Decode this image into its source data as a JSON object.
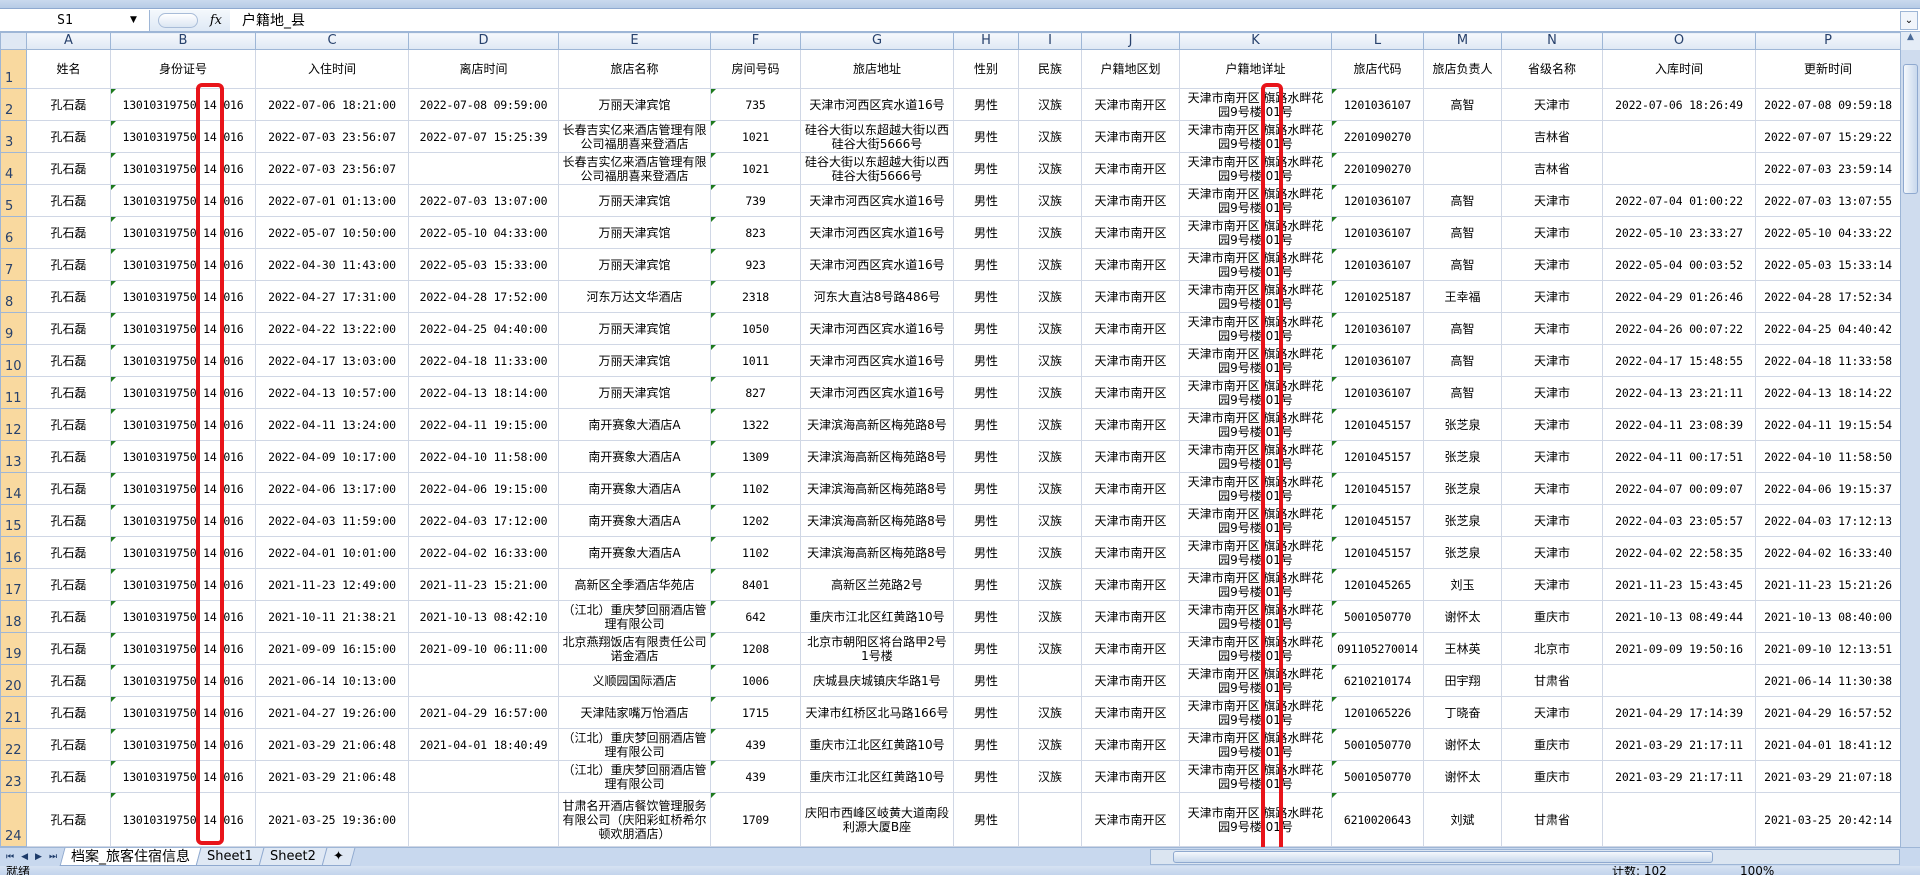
{
  "formula_bar": {
    "name_box": "S1",
    "fx_label": "fx",
    "formula": "户籍地_县"
  },
  "columns": [
    "A",
    "B",
    "C",
    "D",
    "E",
    "F",
    "G",
    "H",
    "I",
    "J",
    "K",
    "L",
    "M",
    "N",
    "O",
    "P"
  ],
  "headers": [
    "姓名",
    "身份证号",
    "入住时间",
    "离店时间",
    "旅店名称",
    "房间号码",
    "旅店地址",
    "性别",
    "民族",
    "户籍地区划",
    "户籍地详址",
    "旅店代码",
    "旅店负责人",
    "省级名称",
    "入库时间",
    "更新时间"
  ],
  "rows": [
    [
      "孔石磊",
      "13010319750 14 016",
      "2022-07-06 18:21:00",
      "2022-07-08 09:59:00",
      "万丽天津宾馆",
      "735",
      "天津市河西区宾水道16号",
      "男性",
      "汉族",
      "天津市南开区",
      "天津市南开区 旗路水畔花园9号楼 01号",
      "1201036107",
      "高智",
      "天津市",
      "2022-07-06 18:26:49",
      "2022-07-08 09:59:18"
    ],
    [
      "孔石磊",
      "13010319750 14 016",
      "2022-07-03 23:56:07",
      "2022-07-07 15:25:39",
      "长春吉实亿来酒店管理有限公司福朋喜来登酒店",
      "1021",
      "硅谷大街以东超越大街以西硅谷大街5666号",
      "男性",
      "汉族",
      "天津市南开区",
      "天津市南开区 旗路水畔花园9号楼 01号",
      "2201090270",
      "",
      "吉林省",
      "",
      "2022-07-07 15:29:22"
    ],
    [
      "孔石磊",
      "13010319750 14 016",
      "2022-07-03 23:56:07",
      "",
      "长春吉实亿来酒店管理有限公司福朋喜来登酒店",
      "1021",
      "硅谷大街以东超越大街以西硅谷大街5666号",
      "男性",
      "汉族",
      "天津市南开区",
      "天津市南开区 旗路水畔花园9号楼 01号",
      "2201090270",
      "",
      "吉林省",
      "",
      "2022-07-03 23:59:14"
    ],
    [
      "孔石磊",
      "13010319750 14 016",
      "2022-07-01 01:13:00",
      "2022-07-03 13:07:00",
      "万丽天津宾馆",
      "739",
      "天津市河西区宾水道16号",
      "男性",
      "汉族",
      "天津市南开区",
      "天津市南开区 旗路水畔花园9号楼 01号",
      "1201036107",
      "高智",
      "天津市",
      "2022-07-04 01:00:22",
      "2022-07-03 13:07:55"
    ],
    [
      "孔石磊",
      "13010319750 14 016",
      "2022-05-07 10:50:00",
      "2022-05-10 04:33:00",
      "万丽天津宾馆",
      "823",
      "天津市河西区宾水道16号",
      "男性",
      "汉族",
      "天津市南开区",
      "天津市南开区 旗路水畔花园9号楼 01号",
      "1201036107",
      "高智",
      "天津市",
      "2022-05-10 23:33:27",
      "2022-05-10 04:33:22"
    ],
    [
      "孔石磊",
      "13010319750 14 016",
      "2022-04-30 11:43:00",
      "2022-05-03 15:33:00",
      "万丽天津宾馆",
      "923",
      "天津市河西区宾水道16号",
      "男性",
      "汉族",
      "天津市南开区",
      "天津市南开区 旗路水畔花园9号楼 01号",
      "1201036107",
      "高智",
      "天津市",
      "2022-05-04 00:03:52",
      "2022-05-03 15:33:14"
    ],
    [
      "孔石磊",
      "13010319750 14 016",
      "2022-04-27 17:31:00",
      "2022-04-28 17:52:00",
      "河东万达文华酒店",
      "2318",
      "河东大直沽8号路486号",
      "男性",
      "汉族",
      "天津市南开区",
      "天津市南开区 旗路水畔花园9号楼 01号",
      "1201025187",
      "王幸福",
      "天津市",
      "2022-04-29 01:26:46",
      "2022-04-28 17:52:34"
    ],
    [
      "孔石磊",
      "13010319750 14 016",
      "2022-04-22 13:22:00",
      "2022-04-25 04:40:00",
      "万丽天津宾馆",
      "1050",
      "天津市河西区宾水道16号",
      "男性",
      "汉族",
      "天津市南开区",
      "天津市南开区 旗路水畔花园9号楼 01号",
      "1201036107",
      "高智",
      "天津市",
      "2022-04-26 00:07:22",
      "2022-04-25 04:40:42"
    ],
    [
      "孔石磊",
      "13010319750 14 016",
      "2022-04-17 13:03:00",
      "2022-04-18 11:33:00",
      "万丽天津宾馆",
      "1011",
      "天津市河西区宾水道16号",
      "男性",
      "汉族",
      "天津市南开区",
      "天津市南开区 旗路水畔花园9号楼 01号",
      "1201036107",
      "高智",
      "天津市",
      "2022-04-17 15:48:55",
      "2022-04-18 11:33:58"
    ],
    [
      "孔石磊",
      "13010319750 14 016",
      "2022-04-13 10:57:00",
      "2022-04-13 18:14:00",
      "万丽天津宾馆",
      "827",
      "天津市河西区宾水道16号",
      "男性",
      "汉族",
      "天津市南开区",
      "天津市南开区 旗路水畔花园9号楼 01号",
      "1201036107",
      "高智",
      "天津市",
      "2022-04-13 23:21:11",
      "2022-04-13 18:14:22"
    ],
    [
      "孔石磊",
      "13010319750 14 016",
      "2022-04-11 13:24:00",
      "2022-04-11 19:15:00",
      "南开赛象大酒店A",
      "1322",
      "天津滨海高新区梅苑路8号",
      "男性",
      "汉族",
      "天津市南开区",
      "天津市南开区 旗路水畔花园9号楼 01号",
      "1201045157",
      "张芝泉",
      "天津市",
      "2022-04-11 23:08:39",
      "2022-04-11 19:15:54"
    ],
    [
      "孔石磊",
      "13010319750 14 016",
      "2022-04-09 10:17:00",
      "2022-04-10 11:58:00",
      "南开赛象大酒店A",
      "1309",
      "天津滨海高新区梅苑路8号",
      "男性",
      "汉族",
      "天津市南开区",
      "天津市南开区 旗路水畔花园9号楼 01号",
      "1201045157",
      "张芝泉",
      "天津市",
      "2022-04-11 00:17:51",
      "2022-04-10 11:58:50"
    ],
    [
      "孔石磊",
      "13010319750 14 016",
      "2022-04-06 13:17:00",
      "2022-04-06 19:15:00",
      "南开赛象大酒店A",
      "1102",
      "天津滨海高新区梅苑路8号",
      "男性",
      "汉族",
      "天津市南开区",
      "天津市南开区 旗路水畔花园9号楼 01号",
      "1201045157",
      "张芝泉",
      "天津市",
      "2022-04-07 00:09:07",
      "2022-04-06 19:15:37"
    ],
    [
      "孔石磊",
      "13010319750 14 016",
      "2022-04-03 11:59:00",
      "2022-04-03 17:12:00",
      "南开赛象大酒店A",
      "1202",
      "天津滨海高新区梅苑路8号",
      "男性",
      "汉族",
      "天津市南开区",
      "天津市南开区 旗路水畔花园9号楼 01号",
      "1201045157",
      "张芝泉",
      "天津市",
      "2022-04-03 23:05:57",
      "2022-04-03 17:12:13"
    ],
    [
      "孔石磊",
      "13010319750 14 016",
      "2022-04-01 10:01:00",
      "2022-04-02 16:33:00",
      "南开赛象大酒店A",
      "1102",
      "天津滨海高新区梅苑路8号",
      "男性",
      "汉族",
      "天津市南开区",
      "天津市南开区 旗路水畔花园9号楼 01号",
      "1201045157",
      "张芝泉",
      "天津市",
      "2022-04-02 22:58:35",
      "2022-04-02 16:33:40"
    ],
    [
      "孔石磊",
      "13010319750 14 016",
      "2021-11-23 12:49:00",
      "2021-11-23 15:21:00",
      "高新区全季酒店华苑店",
      "8401",
      "高新区兰苑路2号",
      "男性",
      "汉族",
      "天津市南开区",
      "天津市南开区 旗路水畔花园9号楼 01号",
      "1201045265",
      "刘玉",
      "天津市",
      "2021-11-23 15:43:45",
      "2021-11-23 15:21:26"
    ],
    [
      "孔石磊",
      "13010319750 14 016",
      "2021-10-11 21:38:21",
      "2021-10-13 08:42:10",
      "（江北）重庆梦回丽酒店管理有限公司",
      "642",
      "重庆市江北区红黄路10号",
      "男性",
      "汉族",
      "天津市南开区",
      "天津市南开区 旗路水畔花园9号楼 01号",
      "5001050770",
      "谢怀太",
      "重庆市",
      "2021-10-13 08:49:44",
      "2021-10-13 08:40:00"
    ],
    [
      "孔石磊",
      "13010319750 14 016",
      "2021-09-09 16:15:00",
      "2021-09-10 06:11:00",
      "北京燕翔饭店有限责任公司诺金酒店",
      "1208",
      "北京市朝阳区将台路甲2号1号楼",
      "男性",
      "汉族",
      "天津市南开区",
      "天津市南开区 旗路水畔花园9号楼 01号",
      "091105270014",
      "王林英",
      "北京市",
      "2021-09-09 19:50:16",
      "2021-09-10 12:13:51"
    ],
    [
      "孔石磊",
      "13010319750 14 016",
      "2021-06-14 10:13:00",
      "",
      "义顺园国际酒店",
      "1006",
      "庆城县庆城镇庆华路1号",
      "男性",
      "",
      "天津市南开区",
      "天津市南开区 旗路水畔花园9号楼 01号",
      "6210210174",
      "田宇翔",
      "甘肃省",
      "",
      "2021-06-14 11:30:38"
    ],
    [
      "孔石磊",
      "13010319750 14 016",
      "2021-04-27 19:26:00",
      "2021-04-29 16:57:00",
      "天津陆家嘴万怡酒店",
      "1715",
      "天津市红桥区北马路166号",
      "男性",
      "汉族",
      "天津市南开区",
      "天津市南开区 旗路水畔花园9号楼 01号",
      "1201065226",
      "丁晓奋",
      "天津市",
      "2021-04-29 17:14:39",
      "2021-04-29 16:57:52"
    ],
    [
      "孔石磊",
      "13010319750 14 016",
      "2021-03-29 21:06:48",
      "2021-04-01 18:40:49",
      "（江北）重庆梦回丽酒店管理有限公司",
      "439",
      "重庆市江北区红黄路10号",
      "男性",
      "汉族",
      "天津市南开区",
      "天津市南开区 旗路水畔花园9号楼 01号",
      "5001050770",
      "谢怀太",
      "重庆市",
      "2021-03-29 21:17:11",
      "2021-04-01 18:41:12"
    ],
    [
      "孔石磊",
      "13010319750 14 016",
      "2021-03-29 21:06:48",
      "",
      "（江北）重庆梦回丽酒店管理有限公司",
      "439",
      "重庆市江北区红黄路10号",
      "男性",
      "汉族",
      "天津市南开区",
      "天津市南开区 旗路水畔花园9号楼 01号",
      "5001050770",
      "谢怀太",
      "重庆市",
      "2021-03-29 21:17:11",
      "2021-03-29 21:07:18"
    ],
    [
      "孔石磊",
      "13010319750 14 016",
      "2021-03-25 19:36:00",
      "",
      "甘肃名开酒店餐饮管理服务有限公司（庆阳彩虹桥希尔顿欢朋酒店）",
      "1709",
      "庆阳市西峰区岐黄大道南段利源大厦B座",
      "男性",
      "",
      "天津市南开区",
      "天津市南开区 旗路水畔花园9号楼 01号",
      "6210020643",
      "刘斌",
      "甘肃省",
      "",
      "2021-03-25 20:42:14"
    ],
    [
      "",
      "",
      "",
      "",
      "",
      "",
      "",
      "",
      "",
      "",
      "天津市南开区 旗路水畔",
      "",
      "",
      "",
      "",
      ""
    ]
  ],
  "sheet_tabs": [
    "档案_旅客住宿信息",
    "Sheet1",
    "Sheet2"
  ],
  "status": {
    "ready": "就绪",
    "count": "计数: 102",
    "zoom": "100%"
  },
  "colors": {
    "highlight_box": "#e8141a",
    "selected_row_header": "#f9d99f",
    "number_as_text_marker": "#1e7a1e"
  }
}
